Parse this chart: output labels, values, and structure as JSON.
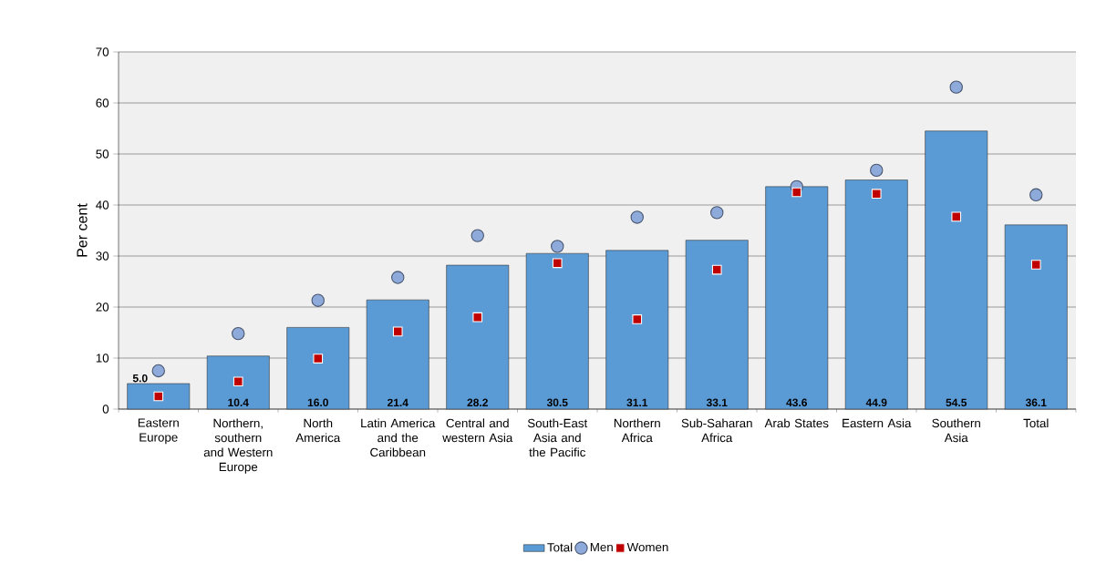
{
  "chart_data": {
    "type": "bar",
    "ylabel": "Per cent",
    "categories": [
      "Eastern Europe",
      "Northern, southern and Western Europe",
      "North America",
      "Latin America and the Caribbean",
      "Central and western Asia",
      "South-East Asia and the Pacific",
      "Northern Africa",
      "Sub-Saharan Africa",
      "Arab States",
      "Eastern Asia",
      "Southern Asia",
      "Total"
    ],
    "series": [
      {
        "name": "Total",
        "color": "#5b9bd5",
        "values": [
          5.0,
          10.4,
          16.0,
          21.4,
          28.2,
          30.5,
          31.1,
          33.1,
          43.6,
          44.9,
          54.5,
          36.1
        ],
        "value_labels": [
          "5.0",
          "10.4",
          "16.0",
          "21.4",
          "28.2",
          "30.5",
          "31.1",
          "33.1",
          "43.6",
          "44.9",
          "54.5",
          "36.1"
        ]
      },
      {
        "name": "Men",
        "type": "scatter",
        "marker": "circle",
        "color": "#8eaadb",
        "values": [
          7.5,
          14.8,
          21.3,
          25.8,
          34.0,
          31.9,
          37.6,
          38.5,
          43.6,
          46.8,
          63.1,
          42.0
        ]
      },
      {
        "name": "Women",
        "type": "scatter",
        "marker": "square",
        "color": "#c00000",
        "values": [
          2.5,
          5.4,
          9.9,
          15.2,
          18.0,
          28.6,
          17.6,
          27.3,
          42.5,
          42.2,
          37.7,
          28.3
        ]
      }
    ],
    "ylim": [
      0,
      70
    ],
    "yticks": [
      0,
      10,
      20,
      30,
      40,
      50,
      60,
      70
    ],
    "grid": "y",
    "legend": "bottom"
  }
}
